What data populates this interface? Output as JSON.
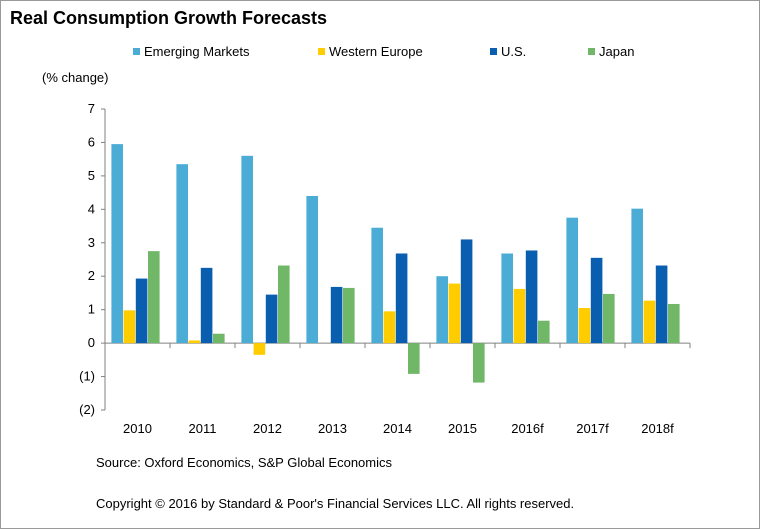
{
  "title": "Real Consumption Growth Forecasts",
  "source": "Source: Oxford Economics, S&P Global Economics",
  "copyright": "Copyright © 2016 by Standard & Poor's Financial Services LLC. All rights reserved.",
  "chart_data": {
    "type": "bar",
    "ylabel": "(% change)",
    "ylim": [
      -2,
      7
    ],
    "yticks": [
      7,
      6,
      5,
      4,
      3,
      2,
      1,
      0,
      -1,
      -2
    ],
    "ytick_labels": [
      "7",
      "6",
      "5",
      "4",
      "3",
      "2",
      "1",
      "0",
      "(1)",
      "(2)"
    ],
    "categories": [
      "2010",
      "2011",
      "2012",
      "2013",
      "2014",
      "2015",
      "2016f",
      "2017f",
      "2018f"
    ],
    "legend_position": "top",
    "series": [
      {
        "name": "Emerging Markets",
        "color": "#4bacd6",
        "values": [
          5.95,
          5.35,
          5.6,
          4.4,
          3.45,
          2.0,
          2.68,
          3.75,
          4.02
        ]
      },
      {
        "name": "Western Europe",
        "color": "#ffcc00",
        "values": [
          0.98,
          0.08,
          -0.35,
          0.0,
          0.95,
          1.78,
          1.62,
          1.05,
          1.27
        ]
      },
      {
        "name": "U.S.",
        "color": "#0a5eb0",
        "values": [
          1.93,
          2.25,
          1.45,
          1.68,
          2.68,
          3.1,
          2.77,
          2.55,
          2.32
        ]
      },
      {
        "name": "Japan",
        "color": "#70b768",
        "values": [
          2.75,
          0.28,
          2.32,
          1.65,
          -0.92,
          -1.18,
          0.67,
          1.47,
          1.17
        ]
      }
    ]
  }
}
